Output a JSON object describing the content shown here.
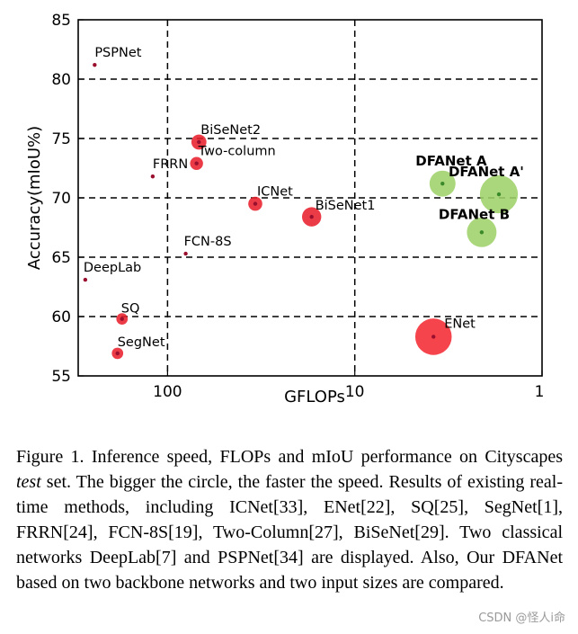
{
  "chart_data": {
    "type": "scatter",
    "title": "",
    "xlabel": "GFLOPs",
    "ylabel": "Accuracy(mIoU%)",
    "x_scale": "log-reversed",
    "xlim": [
      300,
      1
    ],
    "ylim": [
      55,
      85
    ],
    "yticks": [
      55,
      60,
      65,
      70,
      75,
      80,
      85
    ],
    "xticks": [
      {
        "value": 100,
        "label": "100"
      },
      {
        "value": 10,
        "label": "10"
      },
      {
        "value": 1,
        "label": "1"
      }
    ],
    "grid": "dashed vertical and horizontal",
    "series": [
      {
        "name": "PSPNet",
        "x": 245,
        "y": 81.2,
        "speed": 0,
        "color": "#c0123c",
        "bold": false
      },
      {
        "name": "FRRN",
        "x": 120,
        "y": 71.8,
        "speed": 0,
        "color": "#c0123c",
        "bold": false
      },
      {
        "name": "FCN-8S",
        "x": 80,
        "y": 65.3,
        "speed": 0,
        "color": "#c0123c",
        "bold": false
      },
      {
        "name": "DeepLab",
        "x": 275,
        "y": 63.1,
        "speed": 0,
        "color": "#c0123c",
        "bold": false
      },
      {
        "name": "SQ",
        "x": 175,
        "y": 59.8,
        "speed": 1.5,
        "color": "#e8202c",
        "bold": false
      },
      {
        "name": "SegNet",
        "x": 185,
        "y": 56.9,
        "speed": 1.5,
        "color": "#e8202c",
        "bold": false
      },
      {
        "name": "BiSeNet2",
        "x": 68,
        "y": 74.7,
        "speed": 2.2,
        "color": "#e8202c",
        "bold": false
      },
      {
        "name": "Two-column",
        "x": 70,
        "y": 72.9,
        "speed": 1.8,
        "color": "#e8202c",
        "bold": false
      },
      {
        "name": "ICNet",
        "x": 34,
        "y": 69.5,
        "speed": 2.0,
        "color": "#e8202c",
        "bold": false
      },
      {
        "name": "BiSeNet1",
        "x": 17,
        "y": 68.4,
        "speed": 3.0,
        "color": "#e8202c",
        "bold": false
      },
      {
        "name": "ENet",
        "x": 3.8,
        "y": 58.3,
        "speed": 6.3,
        "color": "#f52a33",
        "bold": false
      },
      {
        "name": "DFANet A",
        "x": 3.4,
        "y": 71.2,
        "speed": 4.3,
        "color": "#9fd26a",
        "bold": true
      },
      {
        "name": "DFANet A'",
        "x": 1.7,
        "y": 70.3,
        "speed": 6.6,
        "color": "#9fd26a",
        "bold": true
      },
      {
        "name": "DFANet B",
        "x": 2.1,
        "y": 67.1,
        "speed": 5.0,
        "color": "#9fd26a",
        "bold": true
      }
    ]
  },
  "caption": {
    "line_parts": [
      "Figure 1. Inference speed, FLOPs and mIoU performance on Cityscapes ",
      "test",
      " set.   The bigger the circle, the faster the speed. Results of existing real-time methods, including ICNet[33], ENet[22], SQ[25], SegNet[1], FRRN[24], FCN-8S[19], Two-Column[27], BiSeNet[29].  Two classical networks DeepLab[7] and PSPNet[34] are displayed.  Also, Our DFANet based on two backbone networks and two input sizes are compared."
    ]
  },
  "watermark": "CSDN @怪人i命"
}
